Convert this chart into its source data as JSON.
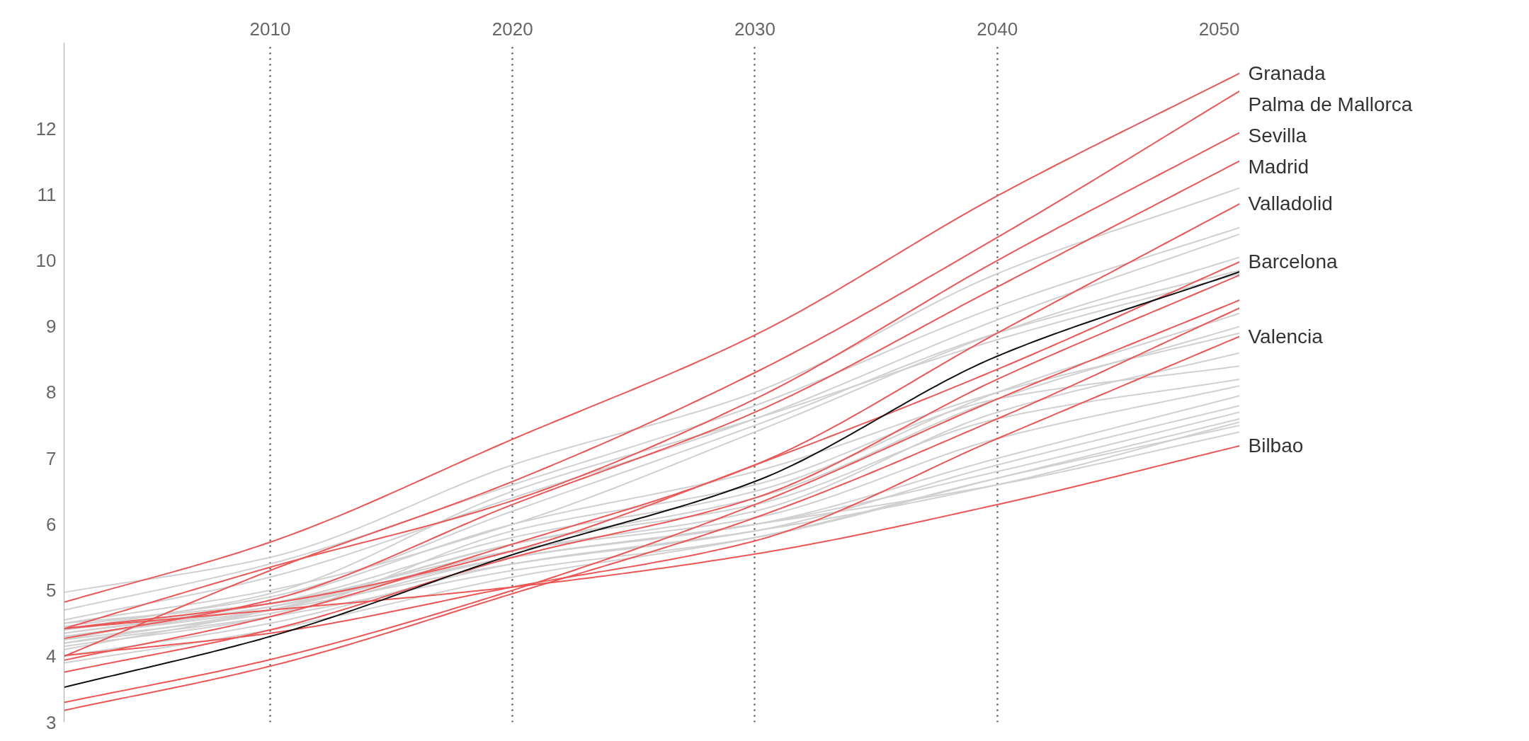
{
  "chart_data": {
    "type": "line",
    "x": [
      2001.5,
      2010,
      2020,
      2030,
      2040,
      2050
    ],
    "xlim": [
      2001.5,
      2050
    ],
    "xticks": [
      2010,
      2020,
      2030,
      2040,
      2050
    ],
    "ylim": [
      3,
      13.3
    ],
    "yticks": [
      3,
      4,
      5,
      6,
      7,
      8,
      9,
      10,
      11,
      12
    ],
    "grid": "x",
    "series": [
      {
        "color": "#d0d0d0",
        "values": [
          4.97,
          5.5,
          6.9,
          8.0,
          9.8,
          11.1
        ]
      },
      {
        "color": "#d0d0d0",
        "values": [
          4.7,
          5.4,
          6.6,
          7.8,
          9.3,
          10.5
        ]
      },
      {
        "color": "#d0d0d0",
        "values": [
          4.55,
          5.2,
          6.4,
          7.6,
          9.1,
          10.4
        ]
      },
      {
        "color": "#d0d0d0",
        "values": [
          4.5,
          5.0,
          6.0,
          7.4,
          8.9,
          10.05
        ]
      },
      {
        "color": "#d0d0d0",
        "values": [
          4.45,
          4.9,
          6.2,
          7.5,
          8.9,
          9.85
        ]
      },
      {
        "color": "#d0d0d0",
        "values": [
          4.4,
          4.95,
          6.5,
          7.6,
          8.8,
          9.8
        ]
      },
      {
        "color": "#d0d0d0",
        "values": [
          4.35,
          4.8,
          5.8,
          6.5,
          8.0,
          9.2
        ]
      },
      {
        "color": "#d0d0d0",
        "values": [
          4.3,
          4.75,
          5.7,
          6.4,
          7.9,
          9.0
        ]
      },
      {
        "color": "#d0d0d0",
        "values": [
          4.25,
          4.85,
          6.0,
          6.8,
          8.0,
          8.9
        ]
      },
      {
        "color": "#d0d0d0",
        "values": [
          4.2,
          4.7,
          5.6,
          6.2,
          7.7,
          8.6
        ]
      },
      {
        "color": "#d0d0d0",
        "values": [
          4.15,
          4.6,
          5.9,
          6.6,
          7.9,
          8.4
        ]
      },
      {
        "color": "#d0d0d0",
        "values": [
          4.1,
          4.7,
          5.7,
          6.3,
          7.6,
          8.2
        ]
      },
      {
        "color": "#d0d0d0",
        "values": [
          4.4,
          4.8,
          5.6,
          6.1,
          7.3,
          8.1
        ]
      },
      {
        "color": "#d0d0d0",
        "values": [
          4.35,
          4.75,
          5.5,
          6.0,
          7.0,
          7.95
        ]
      },
      {
        "color": "#d0d0d0",
        "values": [
          4.3,
          4.7,
          5.4,
          5.9,
          6.9,
          7.8
        ]
      },
      {
        "color": "#d0d0d0",
        "values": [
          4.25,
          4.65,
          5.5,
          6.0,
          6.8,
          7.7
        ]
      },
      {
        "color": "#d0d0d0",
        "values": [
          4.2,
          4.6,
          5.3,
          5.8,
          6.7,
          7.6
        ]
      },
      {
        "color": "#d0d0d0",
        "values": [
          4.0,
          4.5,
          5.4,
          5.9,
          6.6,
          7.55
        ]
      },
      {
        "color": "#d0d0d0",
        "values": [
          3.9,
          4.4,
          5.2,
          5.8,
          6.7,
          7.5
        ]
      },
      {
        "color": "#d0d0d0",
        "values": [
          4.5,
          4.8,
          5.5,
          6.0,
          6.6,
          7.4
        ]
      },
      {
        "name": "Granada",
        "color": "#ee5555",
        "values": [
          4.82,
          5.73,
          7.29,
          8.87,
          10.98,
          12.84
        ]
      },
      {
        "name": "Palma de Mallorca",
        "color": "#ee5555",
        "values": [
          4.0,
          5.3,
          6.65,
          8.3,
          10.35,
          12.57
        ]
      },
      {
        "name": "Sevilla",
        "color": "#ee5555",
        "values": [
          4.42,
          5.35,
          6.36,
          7.9,
          10.0,
          11.94
        ]
      },
      {
        "name": "Madrid",
        "color": "#ee5555",
        "values": [
          4.27,
          4.85,
          6.3,
          7.7,
          9.6,
          11.51
        ]
      },
      {
        "name": "Valladolid",
        "color": "#ee5555",
        "values": [
          3.94,
          4.6,
          5.7,
          6.9,
          8.9,
          10.86
        ]
      },
      {
        "name": "Barcelona",
        "color": "#ee5555",
        "values": [
          4.42,
          4.8,
          5.6,
          6.9,
          8.35,
          9.98
        ]
      },
      {
        "color": "#ee5555",
        "values": [
          3.76,
          4.4,
          5.5,
          6.4,
          8.2,
          9.78
        ]
      },
      {
        "color": "#ee5555",
        "values": [
          3.3,
          3.95,
          5.0,
          6.3,
          7.9,
          9.4
        ]
      },
      {
        "color": "#ee5555",
        "values": [
          3.18,
          3.85,
          4.95,
          6.1,
          7.6,
          9.28
        ]
      },
      {
        "name": "Valencia",
        "color": "#ee5555",
        "values": [
          4.01,
          4.35,
          5.05,
          5.75,
          7.3,
          8.85
        ]
      },
      {
        "name": "Bilbao",
        "color": "#ee5555",
        "values": [
          4.42,
          4.7,
          5.05,
          5.55,
          6.3,
          7.19
        ]
      },
      {
        "color": "#111111",
        "values": [
          3.53,
          4.3,
          5.54,
          6.65,
          8.55,
          9.83
        ]
      }
    ]
  }
}
